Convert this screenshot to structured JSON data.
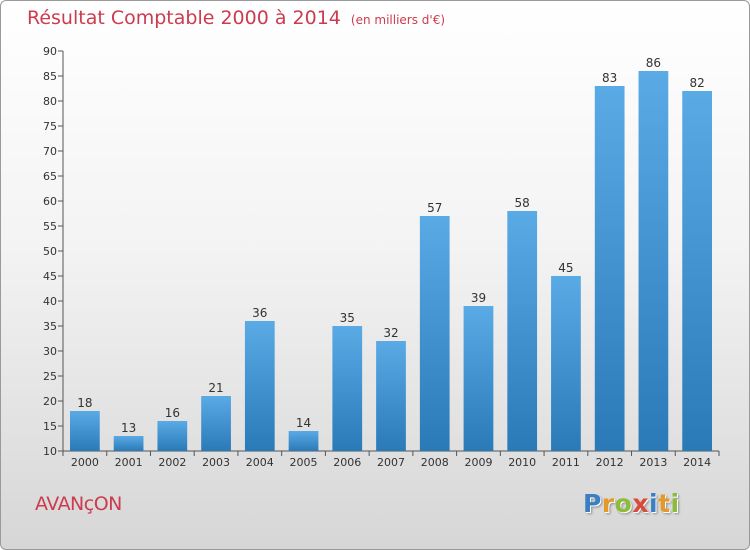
{
  "header": {
    "title": "Résultat Comptable 2000 à 2014",
    "subtitle": "(en milliers d'€)"
  },
  "footer": {
    "commune": "AVANçON",
    "logo_letters": [
      {
        "ch": "P",
        "color": "#3a7fc4"
      },
      {
        "ch": "r",
        "color": "#e39a2c"
      },
      {
        "ch": "o",
        "color": "#8cbc3a"
      },
      {
        "ch": "x",
        "color": "#d94a3a"
      },
      {
        "ch": "i",
        "color": "#3a7fc4"
      },
      {
        "ch": "t",
        "color": "#e39a2c"
      },
      {
        "ch": "i",
        "color": "#8cbc3a"
      }
    ]
  },
  "chart_data": {
    "type": "bar",
    "title": "Résultat Comptable 2000 à 2014",
    "subtitle": "(en milliers d'€)",
    "categories": [
      "2000",
      "2001",
      "2002",
      "2003",
      "2004",
      "2005",
      "2006",
      "2007",
      "2008",
      "2009",
      "2010",
      "2011",
      "2012",
      "2013",
      "2014"
    ],
    "values": [
      18,
      13,
      16,
      21,
      36,
      14,
      35,
      32,
      57,
      39,
      58,
      45,
      83,
      86,
      82
    ],
    "ylim": [
      10,
      90
    ],
    "yticks": [
      10,
      15,
      20,
      25,
      30,
      35,
      40,
      45,
      50,
      55,
      60,
      65,
      70,
      75,
      80,
      85,
      90
    ],
    "grid": false,
    "bar_color_top": "#5aaae6",
    "bar_color_bottom": "#2a7ab8",
    "axis_color": "#555555"
  }
}
